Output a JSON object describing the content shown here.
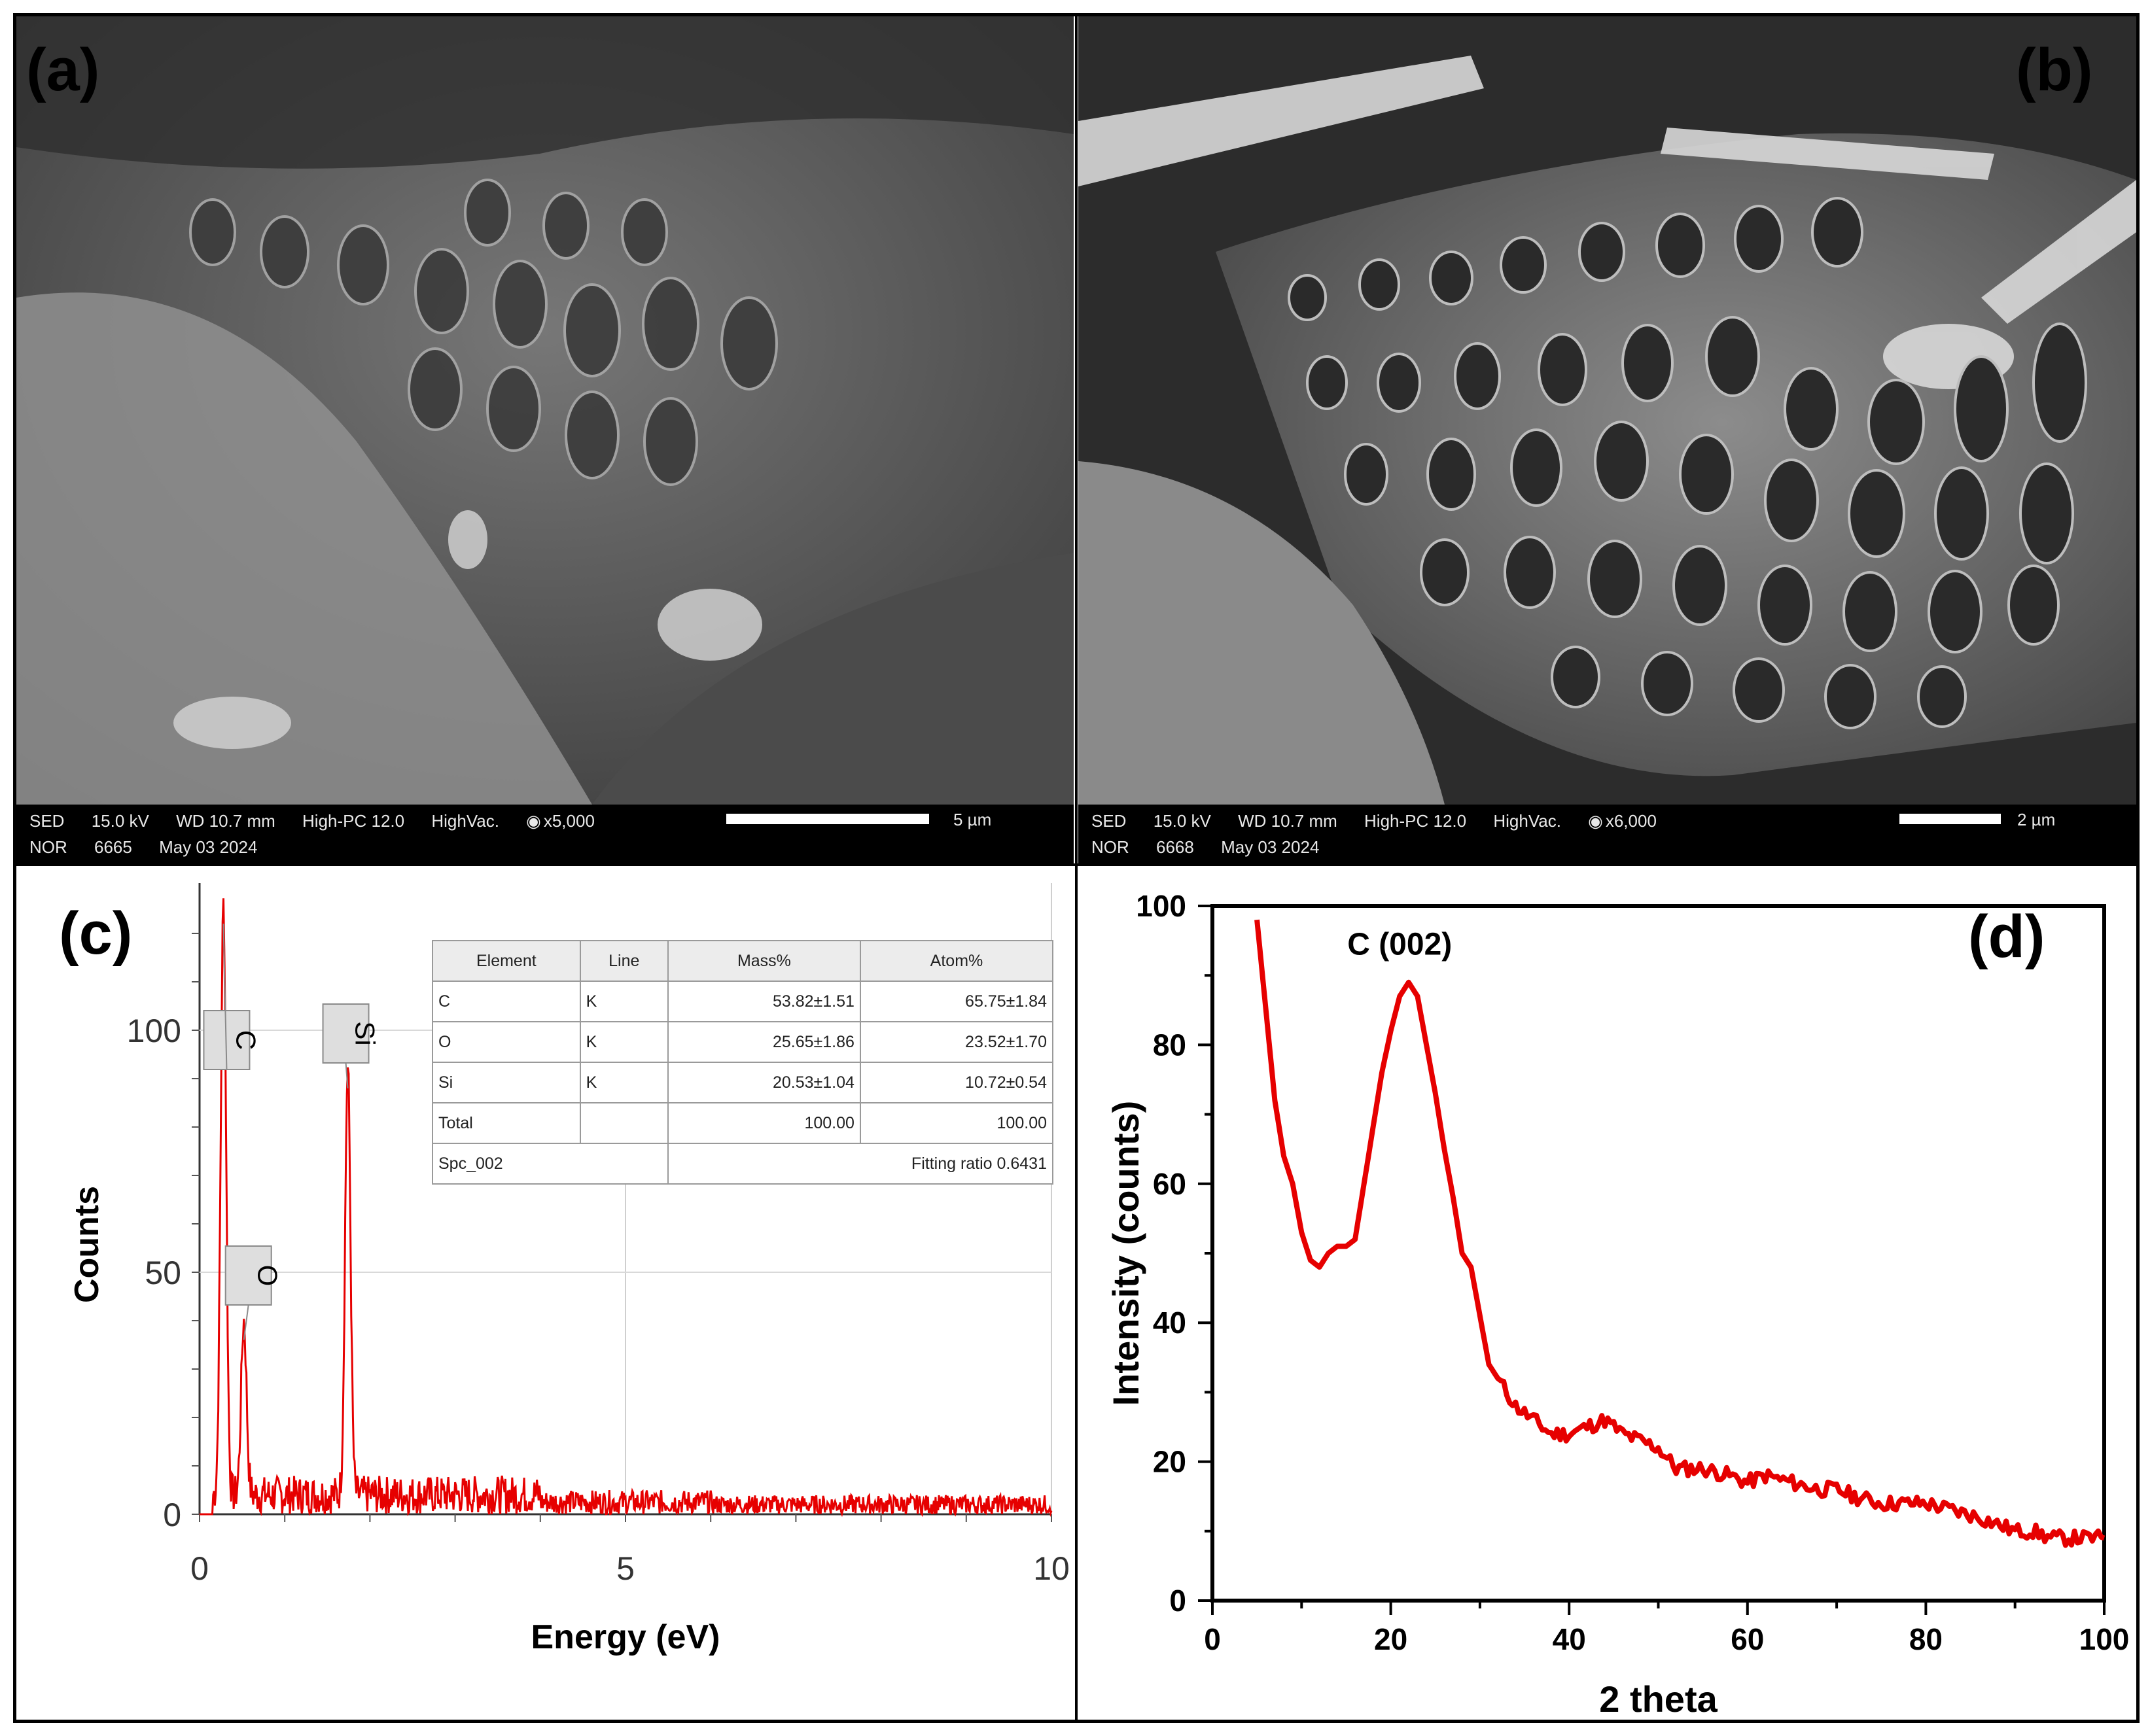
{
  "panels": {
    "a": {
      "label": "(a)",
      "sem": {
        "detector": "SED",
        "kv": "15.0 kV",
        "wd": "WD 10.7 mm",
        "mode": "High-PC 12.0",
        "vac": "HighVac.",
        "mag": "x5,000",
        "mode2": "NOR",
        "id": "6665",
        "date": "May 03 2024",
        "scale": "5 µm"
      }
    },
    "b": {
      "label": "(b)",
      "sem": {
        "detector": "SED",
        "kv": "15.0 kV",
        "wd": "WD 10.7 mm",
        "mode": "High-PC 12.0",
        "vac": "HighVac.",
        "mag": "x6,000",
        "mode2": "NOR",
        "id": "6668",
        "date": "May 03 2024",
        "scale": "2 µm"
      }
    },
    "c": {
      "label": "(c)",
      "table": {
        "headers": [
          "Element",
          "Line",
          "Mass%",
          "Atom%"
        ],
        "rows": [
          [
            "C",
            "K",
            "53.82±1.51",
            "65.75±1.84"
          ],
          [
            "O",
            "K",
            "25.65±1.86",
            "23.52±1.70"
          ],
          [
            "Si",
            "K",
            "20.53±1.04",
            "10.72±0.54"
          ],
          [
            "Total",
            "",
            "100.00",
            "100.00"
          ]
        ],
        "footer_left": "Spc_002",
        "footer_right": "Fitting ratio 0.6431"
      }
    },
    "d": {
      "label": "(d)"
    }
  },
  "chart_data": [
    {
      "type": "line",
      "panel": "c",
      "xlabel": "Energy (eV)",
      "ylabel": "Counts",
      "xlim": [
        0,
        10
      ],
      "ylim": [
        0,
        125
      ],
      "xticks": [
        "0",
        "5",
        "10"
      ],
      "yticks": [
        "0",
        "50",
        "100"
      ],
      "color": "#e60000",
      "peaks": [
        {
          "label": "C",
          "x": 0.28,
          "y": 122
        },
        {
          "label": "O",
          "x": 0.52,
          "y": 36
        },
        {
          "label": "Si",
          "x": 1.74,
          "y": 88
        }
      ],
      "annotations": [
        "C",
        "O",
        "Si"
      ]
    },
    {
      "type": "line",
      "panel": "d",
      "xlabel": "2 theta",
      "ylabel": "Intensity (counts)",
      "xlim": [
        0,
        100
      ],
      "ylim": [
        0,
        100
      ],
      "xticks": [
        "0",
        "20",
        "40",
        "60",
        "80",
        "100"
      ],
      "yticks": [
        "0",
        "20",
        "40",
        "60",
        "80",
        "100"
      ],
      "color": "#e60000",
      "annotation": "C (002)",
      "x": [
        5,
        6,
        7,
        8,
        9,
        10,
        11,
        12,
        13,
        14,
        15,
        16,
        17,
        18,
        19,
        20,
        21,
        22,
        23,
        24,
        25,
        26,
        27,
        28,
        29,
        30,
        31,
        32,
        34,
        36,
        38,
        40,
        42,
        44,
        46,
        48,
        50,
        52,
        55,
        58,
        60,
        62,
        65,
        68,
        70,
        72,
        75,
        78,
        80,
        83,
        86,
        88,
        90,
        92,
        94,
        96,
        98,
        100
      ],
      "y": [
        98,
        85,
        72,
        64,
        60,
        53,
        49,
        48,
        50,
        51,
        51,
        52,
        60,
        68,
        76,
        82,
        87,
        89,
        87,
        80,
        73,
        65,
        58,
        50,
        48,
        41,
        34,
        32,
        28,
        26,
        24,
        24,
        25,
        26,
        24,
        23,
        22,
        19,
        19,
        18,
        17,
        18,
        17,
        16,
        16,
        15,
        14,
        14,
        14,
        13,
        12,
        11,
        10,
        10,
        9,
        9,
        9,
        9
      ]
    }
  ]
}
